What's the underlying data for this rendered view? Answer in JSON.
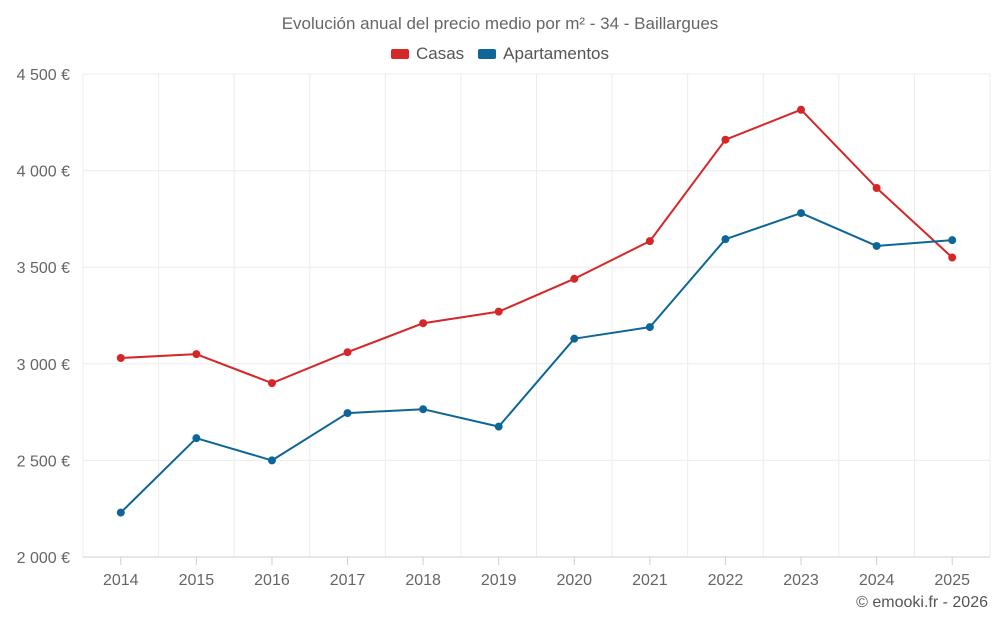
{
  "chart_data": {
    "type": "line",
    "title": "Evolución anual del precio medio por m² - 34 - Baillargues",
    "categories": [
      "2014",
      "2015",
      "2016",
      "2017",
      "2018",
      "2019",
      "2020",
      "2021",
      "2022",
      "2023",
      "2024",
      "2025"
    ],
    "series": [
      {
        "name": "Casas",
        "color": "#d62728",
        "values": [
          3030,
          3050,
          2900,
          3060,
          3210,
          3270,
          3440,
          3635,
          4160,
          4315,
          3910,
          3550
        ]
      },
      {
        "name": "Apartamentos",
        "color": "#0d6697",
        "values": [
          2230,
          2615,
          2500,
          2745,
          2765,
          2675,
          3130,
          3190,
          3645,
          3780,
          3610,
          3640
        ]
      }
    ],
    "ylim": [
      2000,
      4500
    ],
    "yticks": [
      2000,
      2500,
      3000,
      3500,
      4000,
      4500
    ],
    "ytick_labels": [
      "2 000 €",
      "2 500 €",
      "3 000 €",
      "3 500 €",
      "4 000 €",
      "4 500 €"
    ],
    "legend_position": "top-center",
    "grid": true,
    "xlabel": "",
    "ylabel": ""
  },
  "credit": "© emooki.fr - 2026"
}
